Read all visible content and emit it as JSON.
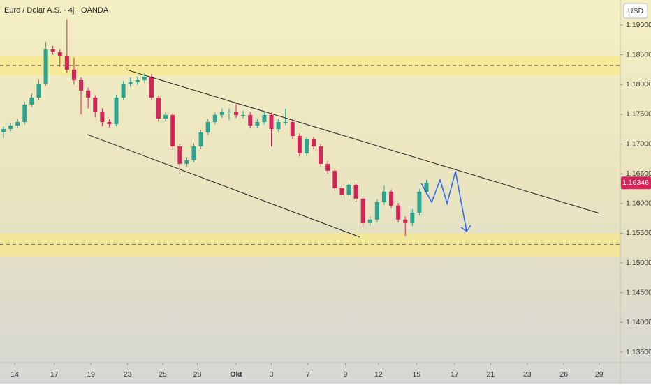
{
  "chart_data": {
    "type": "candlestick",
    "title": "Euro / Dolar A.S. · 4j · OANDA",
    "currency": "USD",
    "last_price": 1.16346,
    "up_color": "#2ba38f",
    "down_color": "#d4245a",
    "zone_color": "#f7e88a",
    "projection_color": "#2962ff",
    "x": [
      0.5,
      1.5,
      2.5,
      3.5,
      4.5,
      5.5,
      6.5,
      7.5,
      8.5,
      9.5,
      10.5,
      11.5,
      12.5,
      13.5,
      14.5,
      15.5,
      16.5,
      17.5,
      18.5,
      19.5,
      20.5,
      21.5,
      22.5,
      23.5,
      24.5,
      25.5,
      26.5,
      27.5,
      28.5,
      29.5,
      30.5,
      31.5,
      32.5,
      33.5,
      34.5,
      35.5,
      36.5,
      37.5,
      38.5,
      39.5,
      40.5,
      41.5,
      42.5,
      43.5,
      44.5,
      45.5,
      46.5,
      47.5,
      48.5,
      49.5,
      50.5,
      51.5,
      52.5,
      53.5,
      54.5,
      55.5,
      56.5,
      57.5,
      58.5,
      59.5,
      60.5
    ],
    "open": [
      1.172,
      1.17253,
      1.17312,
      1.1737,
      1.17664,
      1.17781,
      1.18015,
      1.18601,
      1.18543,
      1.18484,
      1.1825,
      1.18074,
      1.17898,
      1.17781,
      1.17546,
      1.1737,
      1.17335,
      1.17781,
      1.18015,
      1.18039,
      1.18074,
      1.18132,
      1.17781,
      1.17429,
      1.17488,
      1.1696,
      1.16667,
      1.16726,
      1.1696,
      1.17195,
      1.1737,
      1.17488,
      1.17546,
      1.17546,
      1.17488,
      1.17488,
      1.17312,
      1.1737,
      1.17488,
      1.17253,
      1.1737,
      1.1737,
      1.17136,
      1.16843,
      1.17077,
      1.1696,
      1.16667,
      1.1655,
      1.16257,
      1.1614,
      1.16315,
      1.16081,
      1.15671,
      1.1573,
      1.16023,
      1.16198,
      1.15964,
      1.1573,
      1.15671,
      1.15847,
      1.16198
    ],
    "high": [
      1.173,
      1.1736,
      1.1742,
      1.1771,
      1.1785,
      1.1808,
      1.1872,
      1.1865,
      1.186,
      1.191,
      1.1845,
      1.1812,
      1.1795,
      1.1782,
      1.176,
      1.1742,
      1.1783,
      1.1806,
      1.1812,
      1.1813,
      1.182,
      1.1818,
      1.1782,
      1.1754,
      1.1752,
      1.17,
      1.1678,
      1.1701,
      1.1724,
      1.1742,
      1.1753,
      1.176,
      1.176,
      1.1768,
      1.1756,
      1.1754,
      1.1742,
      1.1754,
      1.1753,
      1.1742,
      1.1759,
      1.1741,
      1.1718,
      1.1712,
      1.1712,
      1.17,
      1.1671,
      1.1659,
      1.163,
      1.1636,
      1.1636,
      1.1612,
      1.1578,
      1.1607,
      1.163,
      1.1624,
      1.1601,
      1.1578,
      1.159,
      1.1624,
      1.164
    ],
    "low": [
      1.171,
      1.1721,
      1.1727,
      1.1733,
      1.1762,
      1.1774,
      1.1798,
      1.185,
      1.183,
      1.182,
      1.18,
      1.175,
      1.176,
      1.1745,
      1.173,
      1.1728,
      1.173,
      1.1774,
      1.1796,
      1.1799,
      1.1803,
      1.1774,
      1.1738,
      1.1738,
      1.169,
      1.1649,
      1.1662,
      1.1669,
      1.1692,
      1.1715,
      1.1733,
      1.1744,
      1.174,
      1.1744,
      1.1743,
      1.1726,
      1.1727,
      1.1733,
      1.1696,
      1.1721,
      1.1732,
      1.1709,
      1.1679,
      1.168,
      1.1691,
      1.1662,
      1.165,
      1.1621,
      1.1609,
      1.161,
      1.1603,
      1.156,
      1.1562,
      1.1569,
      1.1598,
      1.1592,
      1.1568,
      1.1545,
      1.1562,
      1.158,
      1.1615
    ],
    "close": [
      1.17253,
      1.17312,
      1.1737,
      1.17664,
      1.17781,
      1.18015,
      1.18601,
      1.18543,
      1.18484,
      1.1825,
      1.18074,
      1.17898,
      1.17781,
      1.17546,
      1.1737,
      1.17335,
      1.17781,
      1.18015,
      1.18039,
      1.18074,
      1.18132,
      1.17781,
      1.17429,
      1.17488,
      1.1696,
      1.16667,
      1.16726,
      1.1696,
      1.17195,
      1.1737,
      1.17488,
      1.17546,
      1.17546,
      1.17488,
      1.17488,
      1.17312,
      1.1737,
      1.17488,
      1.17253,
      1.1737,
      1.1737,
      1.17136,
      1.16843,
      1.17077,
      1.1696,
      1.16667,
      1.1655,
      1.16257,
      1.1614,
      1.16315,
      1.16081,
      1.15671,
      1.1573,
      1.16023,
      1.16198,
      1.15964,
      1.1573,
      1.15671,
      1.15847,
      1.16198,
      1.16346
    ],
    "xlim": [
      0,
      88
    ],
    "xticks": [
      {
        "value": 2.1,
        "label": "14"
      },
      {
        "value": 7.7,
        "label": "17"
      },
      {
        "value": 12.9,
        "label": "19"
      },
      {
        "value": 18.1,
        "label": "23"
      },
      {
        "value": 23.1,
        "label": "25"
      },
      {
        "value": 28,
        "label": "28"
      },
      {
        "value": 33.5,
        "label": "Okt"
      },
      {
        "value": 38.5,
        "label": "3"
      },
      {
        "value": 43.7,
        "label": "7"
      },
      {
        "value": 49,
        "label": "9"
      },
      {
        "value": 53.7,
        "label": "12"
      },
      {
        "value": 59.1,
        "label": "15"
      },
      {
        "value": 64.5,
        "label": "17"
      },
      {
        "value": 69.6,
        "label": "21"
      },
      {
        "value": 74.8,
        "label": "23"
      },
      {
        "value": 80,
        "label": "26"
      },
      {
        "value": 85,
        "label": "29"
      }
    ],
    "ylim": [
      1.13324,
      1.19422
    ],
    "yticks": [
      {
        "value": 1.19,
        "label": "1.19000"
      },
      {
        "value": 1.185,
        "label": "1.18500"
      },
      {
        "value": 1.18,
        "label": "1.18000"
      },
      {
        "value": 1.175,
        "label": "1.17500"
      },
      {
        "value": 1.17,
        "label": "1.17000"
      },
      {
        "value": 1.165,
        "label": "1.16500"
      },
      {
        "value": 1.16,
        "label": "1.16000"
      },
      {
        "value": 1.155,
        "label": "1.15500"
      },
      {
        "value": 1.15,
        "label": "1.15000"
      },
      {
        "value": 1.145,
        "label": "1.14500"
      },
      {
        "value": 1.14,
        "label": "1.14000"
      },
      {
        "value": 1.135,
        "label": "1.13500"
      }
    ],
    "zones": [
      [
        1.18156,
        1.18484
      ],
      [
        1.15109,
        1.15496
      ]
    ],
    "levels": [
      1.1832,
      1.15308
    ],
    "trendlines": [
      {
        "x": [
          17.94,
          85.03
        ],
        "y": [
          1.1825,
          1.15835
        ]
      },
      {
        "x": [
          12.39,
          51.04
        ],
        "y": [
          1.1716,
          1.15437
        ]
      }
    ],
    "projection": {
      "x": [
        59.76,
        61.25,
        62.44,
        63.43,
        64.62,
        66.2
      ],
      "y": [
        1.1634,
        1.16023,
        1.16398,
        1.16,
        1.16539,
        1.15531
      ]
    }
  }
}
